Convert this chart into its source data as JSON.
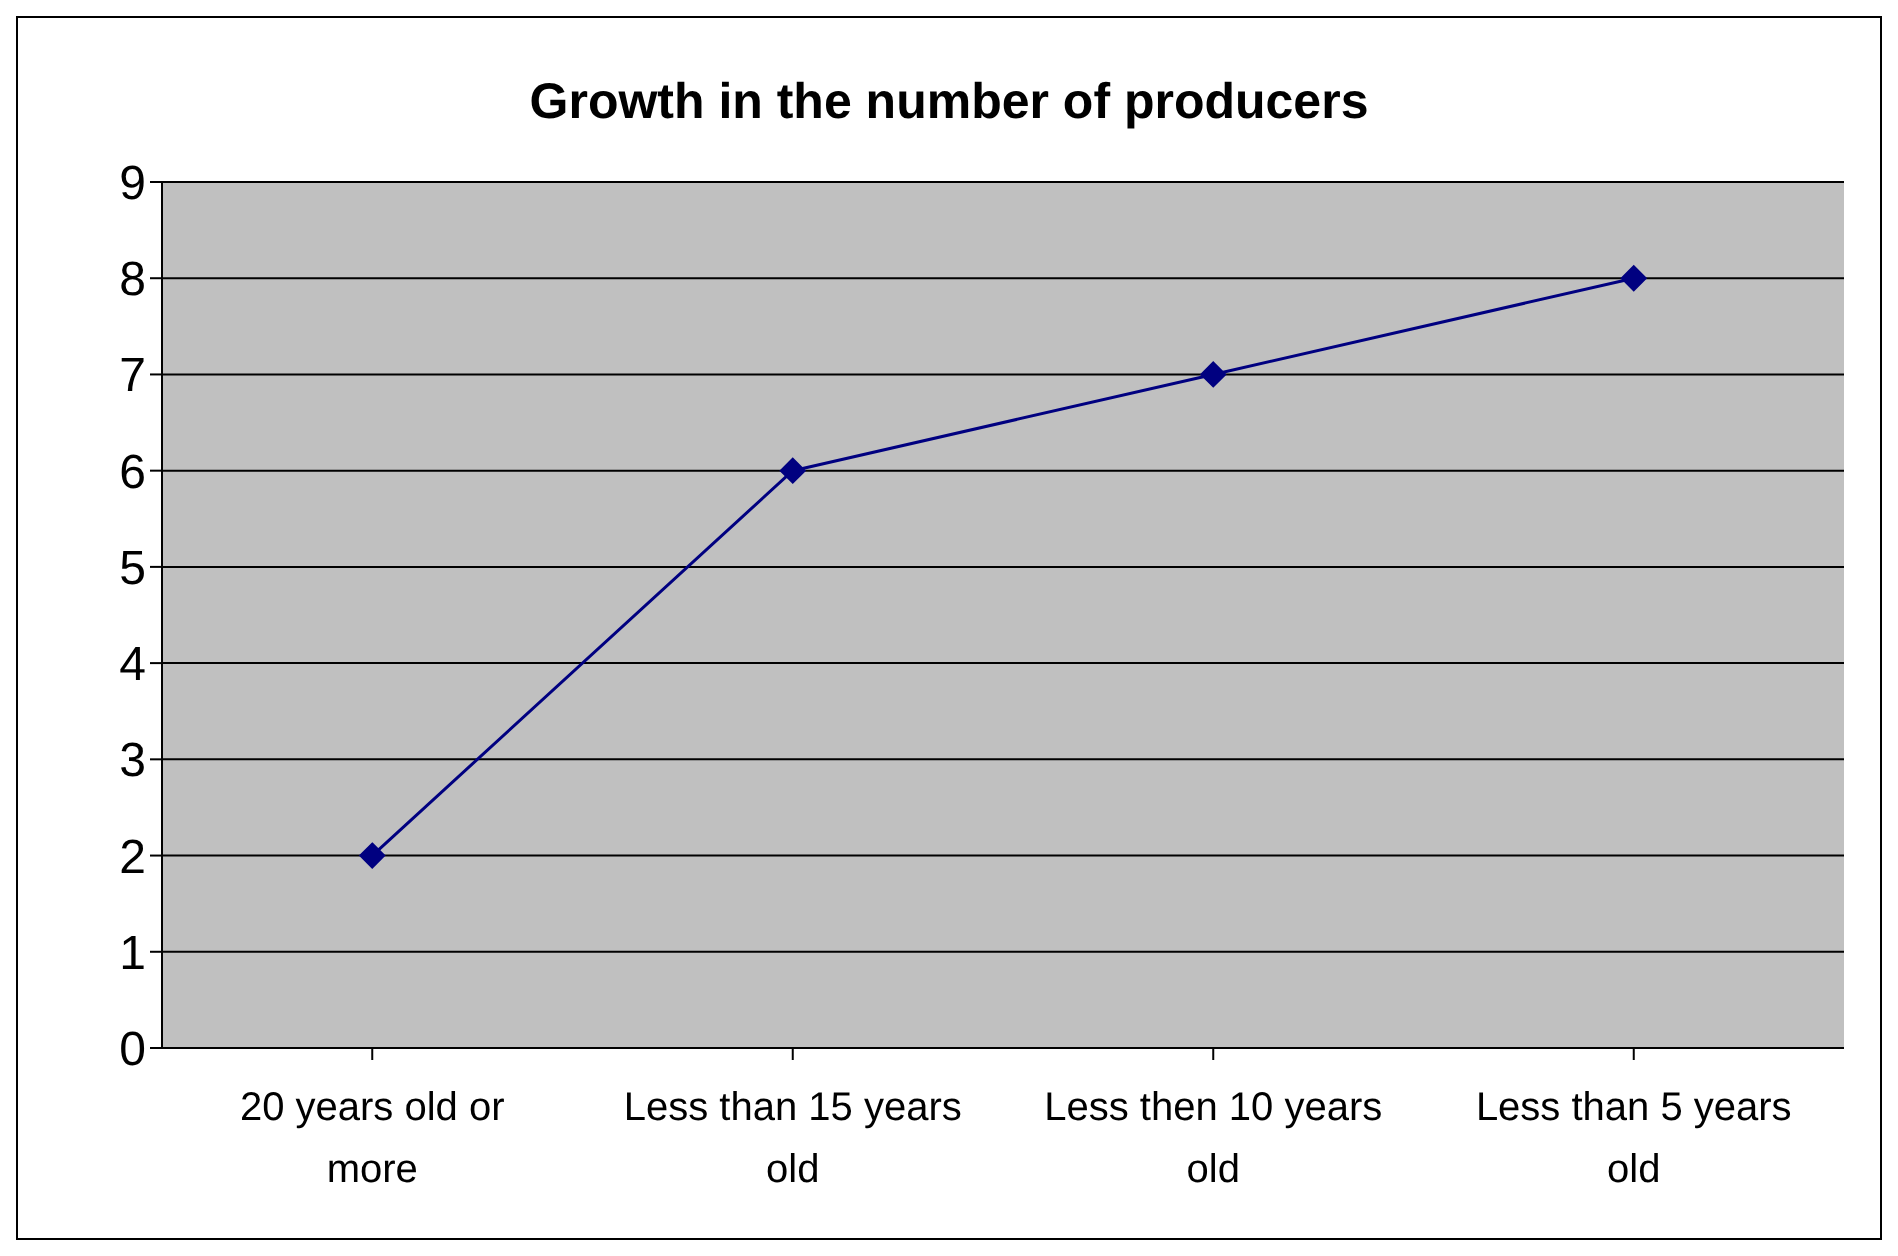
{
  "chart_data": {
    "type": "line",
    "title": "Growth in the number of producers",
    "categories": [
      "20 years old or more",
      "Less than 15 years old",
      "Less then 10 years old",
      "Less than 5 years old"
    ],
    "series": [
      {
        "color": "#000080",
        "values": [
          2,
          6,
          7,
          8
        ]
      }
    ],
    "ylim": [
      0,
      9
    ],
    "yticks": [
      0,
      1,
      2,
      3,
      4,
      5,
      6,
      7,
      8,
      9
    ],
    "grid": "y",
    "legend": false,
    "marker": "diamond",
    "line_style": "solid"
  }
}
